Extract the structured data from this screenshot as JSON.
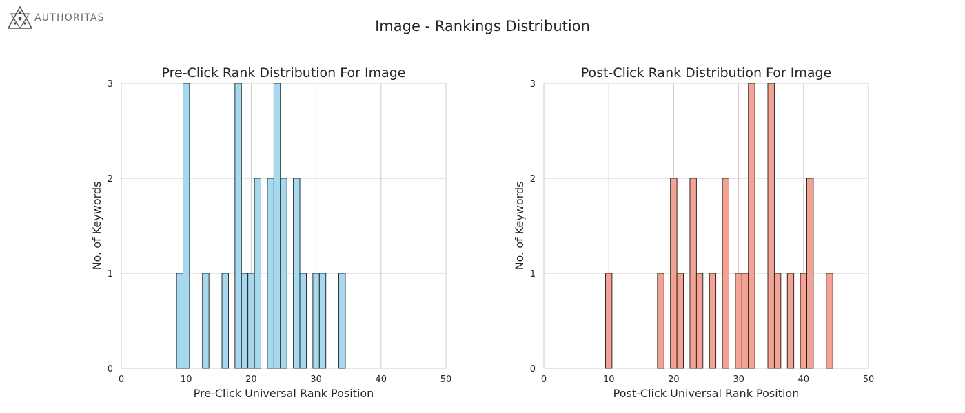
{
  "logo": {
    "text": "AUTHORITAS",
    "icon": "authoritas-star-logo"
  },
  "title": "Image - Rankings Distribution",
  "chart_data": [
    {
      "type": "bar",
      "subtype": "histogram",
      "title": "Pre-Click Rank Distribution For Image",
      "xlabel": "Pre-Click Universal Rank Position",
      "ylabel": "No. of Keywords",
      "xlim": [
        0,
        50
      ],
      "ylim": [
        0,
        3
      ],
      "xticks": [
        0,
        10,
        20,
        30,
        40,
        50
      ],
      "yticks": [
        0,
        1,
        2,
        3
      ],
      "grid": true,
      "bar_color": "#a6d8ee",
      "edge_color": "#1a1a1a",
      "bin_width": 1,
      "bins": [
        {
          "x": 9,
          "count": 1
        },
        {
          "x": 10,
          "count": 3
        },
        {
          "x": 13,
          "count": 1
        },
        {
          "x": 16,
          "count": 1
        },
        {
          "x": 18,
          "count": 3
        },
        {
          "x": 19,
          "count": 1
        },
        {
          "x": 20,
          "count": 1
        },
        {
          "x": 21,
          "count": 2
        },
        {
          "x": 23,
          "count": 2
        },
        {
          "x": 24,
          "count": 3
        },
        {
          "x": 25,
          "count": 2
        },
        {
          "x": 27,
          "count": 2
        },
        {
          "x": 28,
          "count": 1
        },
        {
          "x": 30,
          "count": 1
        },
        {
          "x": 31,
          "count": 1
        },
        {
          "x": 34,
          "count": 1
        }
      ]
    },
    {
      "type": "bar",
      "subtype": "histogram",
      "title": "Post-Click Rank Distribution For Image",
      "xlabel": "Post-Click Universal Rank Position",
      "ylabel": "No. of Keywords",
      "xlim": [
        0,
        50
      ],
      "ylim": [
        0,
        3
      ],
      "xticks": [
        0,
        10,
        20,
        30,
        40,
        50
      ],
      "yticks": [
        0,
        1,
        2,
        3
      ],
      "grid": true,
      "bar_color": "#f4a293",
      "edge_color": "#1a1a1a",
      "bin_width": 1,
      "bins": [
        {
          "x": 10,
          "count": 1
        },
        {
          "x": 18,
          "count": 1
        },
        {
          "x": 20,
          "count": 2
        },
        {
          "x": 21,
          "count": 1
        },
        {
          "x": 23,
          "count": 2
        },
        {
          "x": 24,
          "count": 1
        },
        {
          "x": 26,
          "count": 1
        },
        {
          "x": 28,
          "count": 2
        },
        {
          "x": 30,
          "count": 1
        },
        {
          "x": 31,
          "count": 1
        },
        {
          "x": 32,
          "count": 3
        },
        {
          "x": 35,
          "count": 3
        },
        {
          "x": 36,
          "count": 1
        },
        {
          "x": 38,
          "count": 1
        },
        {
          "x": 40,
          "count": 1
        },
        {
          "x": 41,
          "count": 2
        },
        {
          "x": 44,
          "count": 1
        }
      ]
    }
  ]
}
